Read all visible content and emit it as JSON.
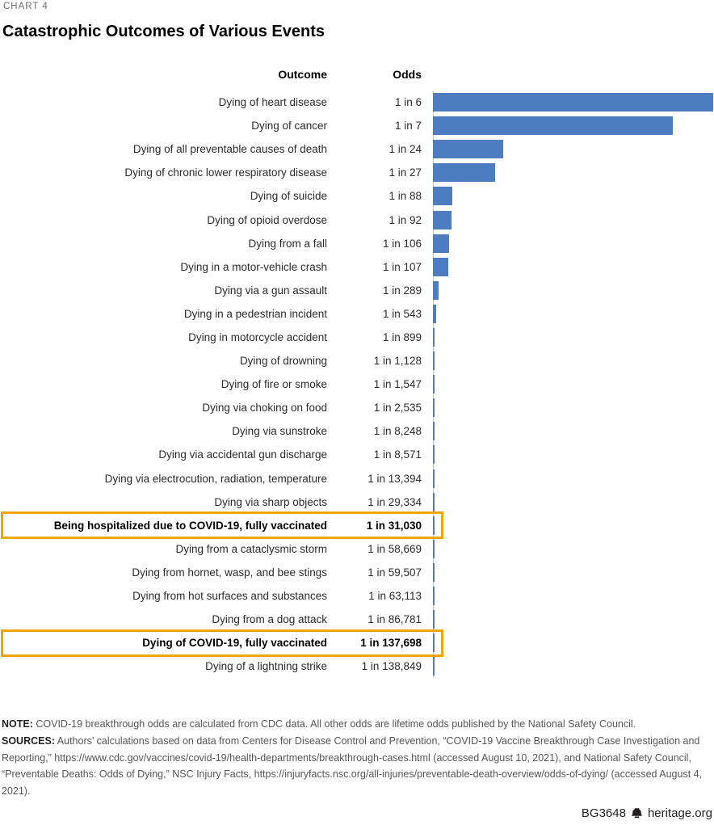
{
  "kicker": "CHART 4",
  "title": "Catastrophic Outcomes of Various Events",
  "table_headers": {
    "outcome": "Outcome",
    "odds": "Odds"
  },
  "chart_data": {
    "type": "bar",
    "orientation": "horizontal",
    "bar_color": "#4d7cc1",
    "axis_color": "#b9c9e4",
    "highlight_color": "#f0a605",
    "bar_length_rule": "proportional to 1/odds; 1-in-6 bar spans full width",
    "rows": [
      {
        "outcome": "Dying of heart disease",
        "odds_label": "1 in 6",
        "odds": 6,
        "highlighted": false
      },
      {
        "outcome": "Dying of cancer",
        "odds_label": "1 in 7",
        "odds": 7,
        "highlighted": false
      },
      {
        "outcome": "Dying of all preventable causes of death",
        "odds_label": "1 in 24",
        "odds": 24,
        "highlighted": false
      },
      {
        "outcome": "Dying of chronic lower respiratory disease",
        "odds_label": "1 in 27",
        "odds": 27,
        "highlighted": false
      },
      {
        "outcome": "Dying of suicide",
        "odds_label": "1 in 88",
        "odds": 88,
        "highlighted": false
      },
      {
        "outcome": "Dying of opioid overdose",
        "odds_label": "1 in 92",
        "odds": 92,
        "highlighted": false
      },
      {
        "outcome": "Dying from a fall",
        "odds_label": "1 in 106",
        "odds": 106,
        "highlighted": false
      },
      {
        "outcome": "Dying in a motor-vehicle crash",
        "odds_label": "1 in 107",
        "odds": 107,
        "highlighted": false
      },
      {
        "outcome": "Dying via a gun assault",
        "odds_label": "1 in 289",
        "odds": 289,
        "highlighted": false
      },
      {
        "outcome": "Dying in a pedestrian incident",
        "odds_label": "1 in 543",
        "odds": 543,
        "highlighted": false
      },
      {
        "outcome": "Dying in motorcycle accident",
        "odds_label": "1 in 899",
        "odds": 899,
        "highlighted": false
      },
      {
        "outcome": "Dying of drowning",
        "odds_label": "1 in 1,128",
        "odds": 1128,
        "highlighted": false
      },
      {
        "outcome": "Dying of fire or smoke",
        "odds_label": "1 in 1,547",
        "odds": 1547,
        "highlighted": false
      },
      {
        "outcome": "Dying via choking on food",
        "odds_label": "1 in 2,535",
        "odds": 2535,
        "highlighted": false
      },
      {
        "outcome": "Dying via sunstroke",
        "odds_label": "1 in 8,248",
        "odds": 8248,
        "highlighted": false
      },
      {
        "outcome": "Dying via accidental gun discharge",
        "odds_label": "1 in 8,571",
        "odds": 8571,
        "highlighted": false
      },
      {
        "outcome": "Dying via electrocution, radiation, temperature",
        "odds_label": "1 in 13,394",
        "odds": 13394,
        "highlighted": false
      },
      {
        "outcome": "Dying via sharp objects",
        "odds_label": "1 in 29,334",
        "odds": 29334,
        "highlighted": false
      },
      {
        "outcome": "Being hospitalized due to COVID-19, fully vaccinated",
        "odds_label": "1 in 31,030",
        "odds": 31030,
        "highlighted": true
      },
      {
        "outcome": "Dying from a cataclysmic storm",
        "odds_label": "1 in 58,669",
        "odds": 58669,
        "highlighted": false
      },
      {
        "outcome": "Dying from hornet, wasp, and bee stings",
        "odds_label": "1 in 59,507",
        "odds": 59507,
        "highlighted": false
      },
      {
        "outcome": "Dying from hot surfaces and substances",
        "odds_label": "1 in 63,113",
        "odds": 63113,
        "highlighted": false
      },
      {
        "outcome": "Dying from a dog attack",
        "odds_label": "1 in 86,781",
        "odds": 86781,
        "highlighted": false
      },
      {
        "outcome": "Dying of COVID-19, fully vaccinated",
        "odds_label": "1 in 137,698",
        "odds": 137698,
        "highlighted": true
      },
      {
        "outcome": "Dying of a lightning strike",
        "odds_label": "1 in 138,849",
        "odds": 138849,
        "highlighted": false
      }
    ]
  },
  "footnotes": {
    "note_label": "NOTE:",
    "note_text": "COVID-19 breakthrough odds are calculated from CDC data. All other odds are lifetime odds published by the National Safety Council.",
    "sources_label": "SOURCES:",
    "sources_text": "Authors’ calculations based on data from Centers for Disease Control and Prevention, “COVID-19 Vaccine Breakthrough Case Investigation and Reporting,” https://www.cdc.gov/vaccines/covid-19/health-departments/breakthrough-cases.html (accessed August 10, 2021), and National Safety Council, “Preventable Deaths: Odds of Dying,” NSC Injury Facts, https://injuryfacts.nsc.org/all-injuries/preventable-death-overview/odds-of-dying/ (accessed August 4, 2021)."
  },
  "footer": {
    "doc_id": "BG3648",
    "site_label": "heritage.org"
  }
}
